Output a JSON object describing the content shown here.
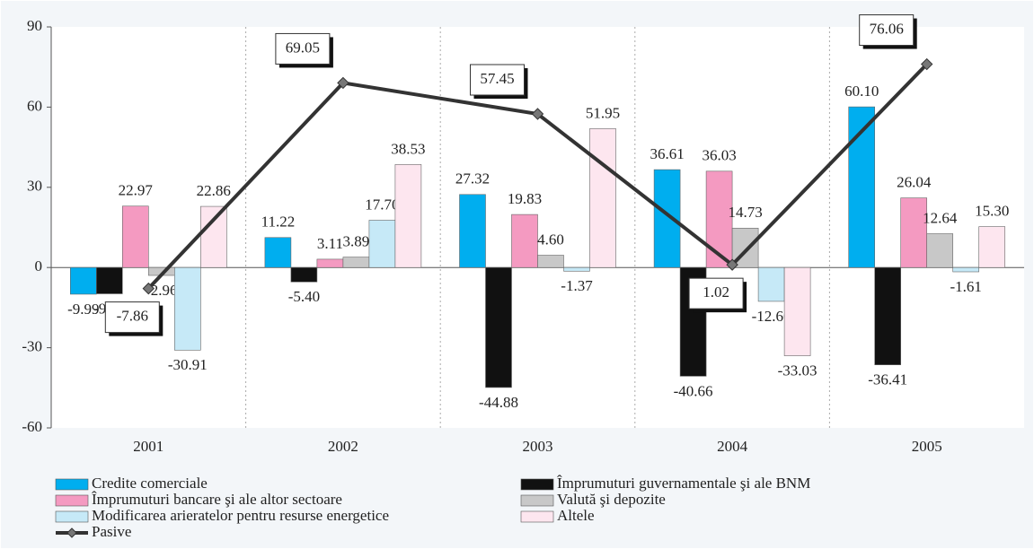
{
  "chart_data": {
    "type": "bar",
    "categories": [
      "2001",
      "2002",
      "2003",
      "2004",
      "2005"
    ],
    "series": [
      {
        "name": "Credite comerciale",
        "color": "#00aeef",
        "values": [
          -9.99,
          11.22,
          27.32,
          36.61,
          60.1
        ],
        "value_labels": [
          "-9.99",
          "11.22",
          "27.32",
          "36.61",
          "60.10"
        ]
      },
      {
        "name": "Împrumuturi guvernamentale şi ale BNM",
        "color": "#111111",
        "values": [
          -9.83,
          -5.4,
          -44.88,
          -40.66,
          -36.41
        ],
        "value_labels": [
          "-9.83",
          "-5.40",
          "-44.88",
          "-40.66",
          "-36.41"
        ]
      },
      {
        "name": "Împrumuturi bancare şi ale altor sectoare",
        "color": "#f49ac1",
        "values": [
          22.97,
          3.11,
          19.83,
          36.03,
          26.04
        ],
        "value_labels": [
          "22.97",
          "3.11",
          "19.83",
          "36.03",
          "26.04"
        ]
      },
      {
        "name": "Valută şi depozite",
        "color": "#c8c8c8",
        "values": [
          -2.96,
          3.89,
          4.6,
          14.73,
          12.64
        ],
        "value_labels": [
          "-2.96",
          "3.89",
          "4.60",
          "14.73",
          "12.64"
        ]
      },
      {
        "name": "Modificarea arieratelor pentru resurse energetice",
        "color": "#c6e9f7",
        "values": [
          -30.91,
          17.7,
          -1.37,
          -12.66,
          -1.61
        ],
        "value_labels": [
          "-30.91",
          "17.70",
          "-1.37",
          "-12.66",
          "-1.61"
        ]
      },
      {
        "name": "Altele",
        "color": "#fde6ef",
        "values": [
          22.86,
          38.53,
          51.95,
          -33.03,
          15.3
        ],
        "value_labels": [
          "22.86",
          "38.53",
          "51.95",
          "-33.03",
          "15.30"
        ]
      },
      {
        "name": "Pasive",
        "type": "line",
        "color": "#333333",
        "values": [
          -7.86,
          69.05,
          57.45,
          1.02,
          76.06
        ],
        "value_labels": [
          "-7.86",
          "69.05",
          "57.45",
          "1.02",
          "76.06"
        ]
      }
    ],
    "ylim": [
      -60,
      90
    ],
    "yticks": [
      -60,
      -30,
      0,
      30,
      60,
      90
    ],
    "grid": false
  }
}
